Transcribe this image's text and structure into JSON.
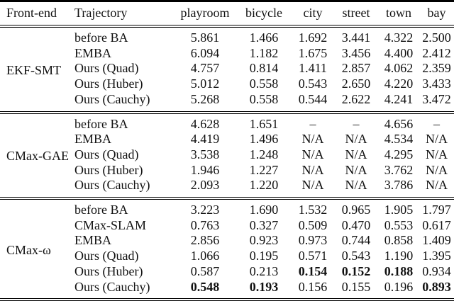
{
  "table": {
    "headers": [
      "Front-end",
      "Trajectory",
      "playroom",
      "bicycle",
      "city",
      "street",
      "town",
      "bay"
    ],
    "groups": [
      {
        "frontend": "EKF-SMT",
        "rows": [
          {
            "trajectory": "before BA",
            "values": [
              "5.861",
              "1.466",
              "1.692",
              "3.441",
              "4.322",
              "2.500"
            ],
            "bold": []
          },
          {
            "trajectory": "EMBA",
            "values": [
              "6.094",
              "1.182",
              "1.675",
              "3.456",
              "4.400",
              "2.412"
            ],
            "bold": []
          },
          {
            "trajectory": "Ours (Quad)",
            "values": [
              "4.757",
              "0.814",
              "1.411",
              "2.857",
              "4.062",
              "2.359"
            ],
            "bold": []
          },
          {
            "trajectory": "Ours (Huber)",
            "values": [
              "5.012",
              "0.558",
              "0.543",
              "2.650",
              "4.220",
              "3.433"
            ],
            "bold": []
          },
          {
            "trajectory": "Ours (Cauchy)",
            "values": [
              "5.268",
              "0.558",
              "0.544",
              "2.622",
              "4.241",
              "3.472"
            ],
            "bold": []
          }
        ]
      },
      {
        "frontend": "CMax-GAE",
        "rows": [
          {
            "trajectory": "before BA",
            "values": [
              "4.628",
              "1.651",
              "–",
              "–",
              "4.656",
              "–"
            ],
            "bold": []
          },
          {
            "trajectory": "EMBA",
            "values": [
              "4.419",
              "1.496",
              "N/A",
              "N/A",
              "4.534",
              "N/A"
            ],
            "bold": []
          },
          {
            "trajectory": "Ours (Quad)",
            "values": [
              "3.538",
              "1.248",
              "N/A",
              "N/A",
              "4.295",
              "N/A"
            ],
            "bold": []
          },
          {
            "trajectory": "Ours (Huber)",
            "values": [
              "1.946",
              "1.227",
              "N/A",
              "N/A",
              "3.762",
              "N/A"
            ],
            "bold": []
          },
          {
            "trajectory": "Ours (Cauchy)",
            "values": [
              "2.093",
              "1.220",
              "N/A",
              "N/A",
              "3.786",
              "N/A"
            ],
            "bold": []
          }
        ]
      },
      {
        "frontend": "CMax-ω",
        "rows": [
          {
            "trajectory": "before BA",
            "values": [
              "3.223",
              "1.690",
              "1.532",
              "0.965",
              "1.905",
              "1.797"
            ],
            "bold": []
          },
          {
            "trajectory": "CMax-SLAM",
            "values": [
              "0.763",
              "0.327",
              "0.509",
              "0.470",
              "0.553",
              "0.617"
            ],
            "bold": []
          },
          {
            "trajectory": "EMBA",
            "values": [
              "2.856",
              "0.923",
              "0.973",
              "0.744",
              "0.858",
              "1.409"
            ],
            "bold": []
          },
          {
            "trajectory": "Ours (Quad)",
            "values": [
              "1.066",
              "0.195",
              "0.571",
              "0.543",
              "1.190",
              "1.395"
            ],
            "bold": []
          },
          {
            "trajectory": "Ours (Huber)",
            "values": [
              "0.587",
              "0.213",
              "0.154",
              "0.152",
              "0.188",
              "0.934"
            ],
            "bold": [
              2,
              3,
              4
            ]
          },
          {
            "trajectory": "Ours (Cauchy)",
            "values": [
              "0.548",
              "0.193",
              "0.156",
              "0.155",
              "0.196",
              "0.893"
            ],
            "bold": [
              0,
              1,
              5
            ]
          }
        ]
      }
    ]
  }
}
